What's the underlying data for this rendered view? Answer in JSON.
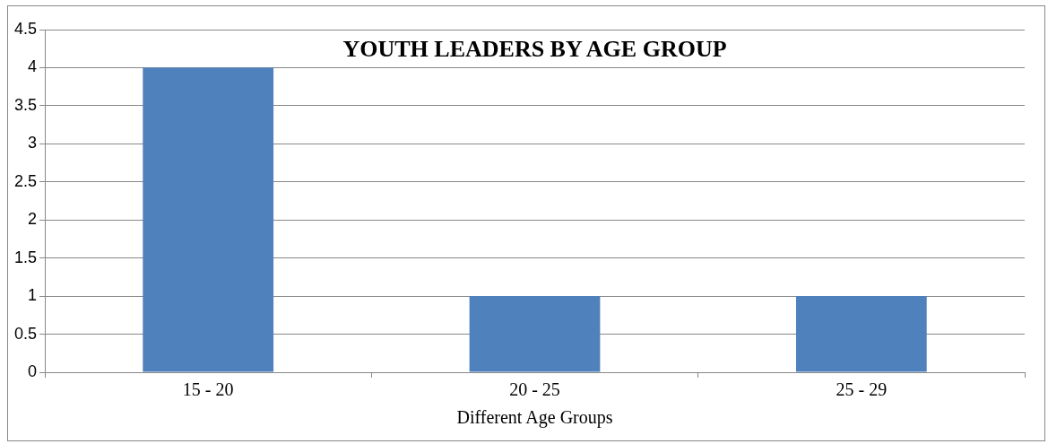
{
  "chart_data": {
    "type": "bar",
    "title": "YOUTH LEADERS BY AGE GROUP",
    "xlabel": "Different Age Groups",
    "categories": [
      "15 - 20",
      "20 - 25",
      "25 - 29"
    ],
    "values": [
      4,
      1,
      1
    ],
    "color": "#4f81bd",
    "ylim": [
      0,
      4.5
    ],
    "yticks": [
      0,
      0.5,
      1,
      1.5,
      2,
      2.5,
      3,
      3.5,
      4,
      4.5
    ],
    "grid": "y"
  }
}
